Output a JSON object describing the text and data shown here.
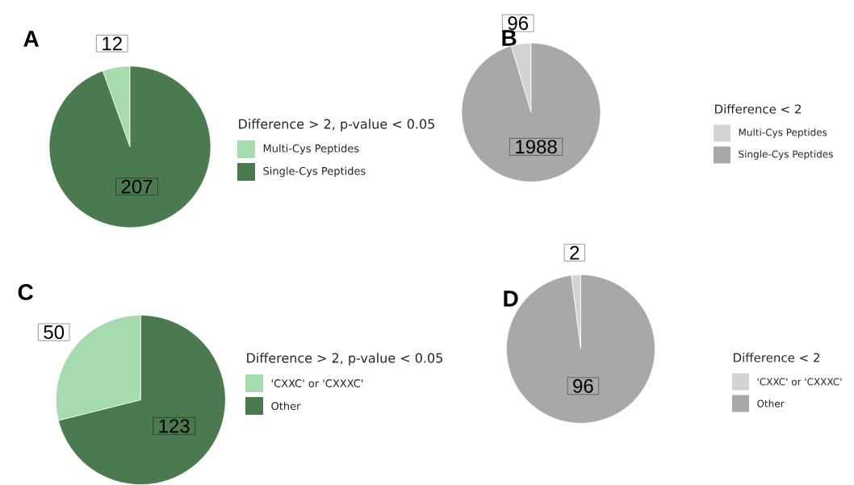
{
  "chart_data": [
    {
      "type": "pie",
      "title": "A",
      "legend_title": "Difference > 2, p-value < 0.05",
      "categories": [
        "Multi-Cys Peptides",
        "Single-Cys Peptides"
      ],
      "values": [
        12,
        207
      ],
      "colors": [
        "#a6dbad",
        "#4b7a4f"
      ],
      "data_labels": true,
      "legend": "right"
    },
    {
      "type": "pie",
      "title": "B",
      "legend_title": "Difference < 2",
      "categories": [
        "Multi-Cys Peptides",
        "Single-Cys Peptides"
      ],
      "values": [
        96,
        1988
      ],
      "colors": [
        "#d3d3d3",
        "#a8a8a8"
      ],
      "data_labels": true,
      "legend": "right"
    },
    {
      "type": "pie",
      "title": "C",
      "legend_title": "Difference > 2, p-value < 0.05",
      "categories": [
        "'CXXC' or 'CXXXC'",
        "Other"
      ],
      "values": [
        50,
        123
      ],
      "colors": [
        "#a6dbad",
        "#4b7a4f"
      ],
      "data_labels": true,
      "legend": "right"
    },
    {
      "type": "pie",
      "title": "D",
      "legend_title": "Difference < 2",
      "categories": [
        "'CXXC' or 'CXXXC'",
        "Other"
      ],
      "values": [
        2,
        96
      ],
      "colors": [
        "#d3d3d3",
        "#a8a8a8"
      ],
      "data_labels": true,
      "legend": "right"
    }
  ]
}
